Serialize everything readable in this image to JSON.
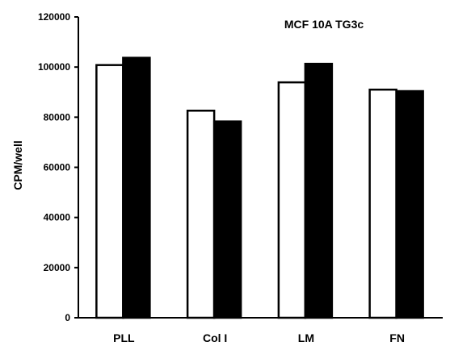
{
  "chart_data": {
    "type": "bar",
    "title": "MCF 10A TG3c",
    "xlabel": "",
    "ylabel": "CPM/well",
    "ylim": [
      0,
      120000
    ],
    "yticks": [
      0,
      20000,
      40000,
      60000,
      80000,
      100000,
      120000
    ],
    "ytick_labels": [
      "0",
      "20000",
      "40000",
      "60000",
      "80000",
      "100000",
      "120000"
    ],
    "categories": [
      "PLL",
      "Col I",
      "LM",
      "FN"
    ],
    "series": [
      {
        "values": [
          100800,
          82600,
          93900,
          91000
        ],
        "fill": "#ffffff"
      },
      {
        "values": [
          103700,
          78300,
          101300,
          90400
        ],
        "fill": "#000000"
      }
    ],
    "grid": false,
    "legend": "none"
  }
}
